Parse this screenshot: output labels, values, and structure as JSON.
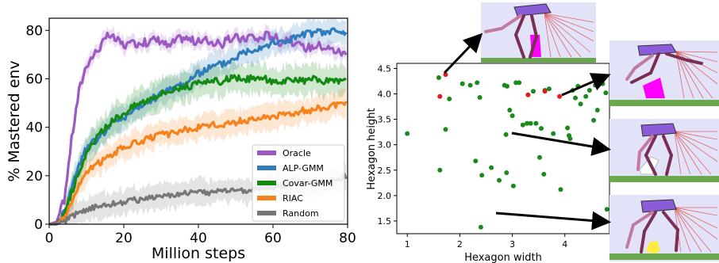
{
  "chart_data": [
    {
      "type": "line",
      "xlabel": "Million steps",
      "ylabel": "% Mastered env",
      "xlim": [
        0,
        80
      ],
      "ylim": [
        0,
        85
      ],
      "x_ticks": [
        "0",
        "20",
        "40",
        "60",
        "80"
      ],
      "y_ticks": [
        "0",
        "20",
        "40",
        "60",
        "80"
      ],
      "grid": false,
      "legend_position": "bottom-right",
      "series": [
        {
          "name": "Oracle",
          "color": "#9b59c2",
          "x": [
            0,
            2,
            4,
            6,
            8,
            10,
            12,
            14,
            16,
            18,
            20,
            22,
            24,
            26,
            28,
            30,
            32,
            34,
            36,
            38,
            40,
            42,
            44,
            46,
            48,
            50,
            52,
            54,
            56,
            58,
            60,
            62,
            64,
            66,
            68,
            70,
            72,
            74,
            76,
            78,
            80
          ],
          "y": [
            0,
            1,
            10,
            35,
            55,
            66,
            70,
            74,
            78,
            76,
            74,
            74,
            75,
            75,
            76,
            76,
            73,
            76,
            77,
            76,
            75,
            76,
            75,
            74,
            76,
            77,
            76,
            78,
            76,
            78,
            78,
            75,
            77,
            74,
            73,
            73,
            74,
            73,
            72,
            71,
            70
          ]
        },
        {
          "name": "ALP-GMM",
          "color": "#2e7bbd",
          "x": [
            0,
            2,
            4,
            6,
            8,
            10,
            12,
            14,
            16,
            18,
            20,
            22,
            24,
            26,
            28,
            30,
            32,
            34,
            36,
            38,
            40,
            42,
            44,
            46,
            48,
            50,
            52,
            54,
            56,
            58,
            60,
            62,
            64,
            66,
            68,
            70,
            72,
            74,
            76,
            78,
            80
          ],
          "y": [
            0,
            0,
            5,
            15,
            25,
            31,
            34,
            37,
            40,
            43,
            44,
            46,
            48,
            50,
            52,
            54,
            55,
            57,
            58,
            60,
            62,
            64,
            65,
            66,
            67,
            69,
            71,
            72,
            73,
            74,
            75,
            75,
            76,
            77,
            78,
            79,
            79,
            79,
            80,
            79,
            79
          ]
        },
        {
          "name": "Covar-GMM",
          "color": "#138a13",
          "x": [
            0,
            2,
            4,
            6,
            8,
            10,
            12,
            14,
            16,
            18,
            20,
            22,
            24,
            26,
            28,
            30,
            32,
            34,
            36,
            38,
            40,
            42,
            44,
            46,
            48,
            50,
            52,
            54,
            56,
            58,
            60,
            62,
            64,
            66,
            68,
            70,
            72,
            74,
            76,
            78,
            80
          ],
          "y": [
            0,
            0,
            4,
            13,
            22,
            29,
            34,
            38,
            41,
            44,
            46,
            48,
            50,
            51,
            53,
            54,
            55,
            56,
            57,
            57,
            58,
            58,
            59,
            59,
            60,
            60,
            60,
            60,
            60,
            60,
            59,
            59,
            59,
            59,
            59,
            60,
            59,
            59,
            59,
            59,
            59
          ]
        },
        {
          "name": "RIAC",
          "color": "#f7821c",
          "x": [
            0,
            2,
            4,
            6,
            8,
            10,
            12,
            14,
            16,
            18,
            20,
            22,
            24,
            26,
            28,
            30,
            32,
            34,
            36,
            38,
            40,
            42,
            44,
            46,
            48,
            50,
            52,
            54,
            56,
            58,
            60,
            62,
            64,
            66,
            68,
            70,
            72,
            74,
            76,
            78,
            80
          ],
          "y": [
            0,
            0,
            3,
            9,
            16,
            21,
            24,
            26,
            28,
            30,
            32,
            33,
            34,
            35,
            36,
            37,
            37,
            38,
            39,
            39,
            40,
            40,
            41,
            41,
            42,
            42,
            43,
            43,
            44,
            44,
            45,
            45,
            46,
            46,
            47,
            47,
            48,
            48,
            49,
            49,
            50
          ]
        },
        {
          "name": "Random",
          "color": "#777777",
          "x": [
            0,
            2,
            4,
            6,
            8,
            10,
            12,
            14,
            16,
            18,
            20,
            22,
            24,
            26,
            28,
            30,
            32,
            34,
            36,
            38,
            40,
            42,
            44,
            46,
            48,
            50,
            52,
            54,
            56,
            58,
            60,
            62,
            64,
            66,
            68,
            70,
            72,
            74,
            76,
            78,
            80
          ],
          "y": [
            0,
            0,
            1,
            3,
            5,
            6,
            7,
            8,
            8,
            9,
            9,
            10,
            10,
            11,
            11,
            12,
            12,
            12,
            13,
            13,
            13,
            13,
            13,
            14,
            14,
            14,
            14,
            14,
            15,
            15,
            15,
            16,
            16,
            17,
            17,
            17,
            17,
            17,
            18,
            19,
            20
          ]
        }
      ]
    },
    {
      "type": "scatter",
      "xlabel": "Hexagon width",
      "ylabel": "Hexagon height",
      "xlim": [
        0.8,
        4.85
      ],
      "ylim": [
        1.25,
        4.6
      ],
      "x_ticks": [
        "1",
        "2",
        "3",
        "4"
      ],
      "y_ticks": [
        "1.5",
        "2.0",
        "2.5",
        "3.0",
        "3.5",
        "4.0",
        "4.5"
      ],
      "series": [
        {
          "color": "#1a8a1a",
          "points": [
            [
              1.0,
              3.22
            ],
            [
              1.6,
              4.32
            ],
            [
              1.62,
              2.5
            ],
            [
              1.73,
              3.3
            ],
            [
              1.8,
              3.9
            ],
            [
              2.05,
              4.2
            ],
            [
              2.2,
              4.17
            ],
            [
              2.3,
              2.68
            ],
            [
              2.33,
              4.22
            ],
            [
              2.38,
              3.93
            ],
            [
              2.4,
              1.38
            ],
            [
              2.42,
              2.4
            ],
            [
              2.6,
              2.55
            ],
            [
              2.75,
              2.3
            ],
            [
              2.85,
              4.17
            ],
            [
              2.88,
              3.2
            ],
            [
              2.89,
              2.45
            ],
            [
              2.9,
              4.15
            ],
            [
              2.95,
              3.68
            ],
            [
              3.0,
              3.57
            ],
            [
              3.02,
              2.19
            ],
            [
              3.07,
              4.22
            ],
            [
              3.13,
              4.22
            ],
            [
              3.2,
              3.39
            ],
            [
              3.28,
              3.42
            ],
            [
              3.35,
              3.42
            ],
            [
              3.4,
              4.05
            ],
            [
              3.45,
              3.42
            ],
            [
              3.52,
              2.75
            ],
            [
              3.55,
              3.32
            ],
            [
              3.6,
              2.42
            ],
            [
              3.62,
              4.07
            ],
            [
              3.7,
              4.1
            ],
            [
              3.78,
              3.22
            ],
            [
              3.92,
              2.12
            ],
            [
              4.05,
              3.33
            ],
            [
              4.08,
              3.18
            ],
            [
              4.1,
              3.12
            ],
            [
              4.15,
              4.07
            ],
            [
              4.2,
              3.92
            ],
            [
              4.25,
              4.15
            ],
            [
              4.3,
              3.8
            ],
            [
              4.4,
              3.95
            ],
            [
              4.47,
              4.07
            ],
            [
              4.55,
              3.48
            ],
            [
              4.58,
              4.17
            ],
            [
              4.62,
              3.68
            ],
            [
              4.7,
              2.98
            ],
            [
              4.72,
              4.2
            ],
            [
              4.78,
              4.02
            ],
            [
              4.8,
              1.73
            ]
          ]
        },
        {
          "color": "#e31a1a",
          "points": [
            [
              1.62,
              3.95
            ],
            [
              1.73,
              4.38
            ],
            [
              3.3,
              3.98
            ],
            [
              3.62,
              4.05
            ],
            [
              3.9,
              3.95
            ]
          ]
        }
      ]
    }
  ]
}
